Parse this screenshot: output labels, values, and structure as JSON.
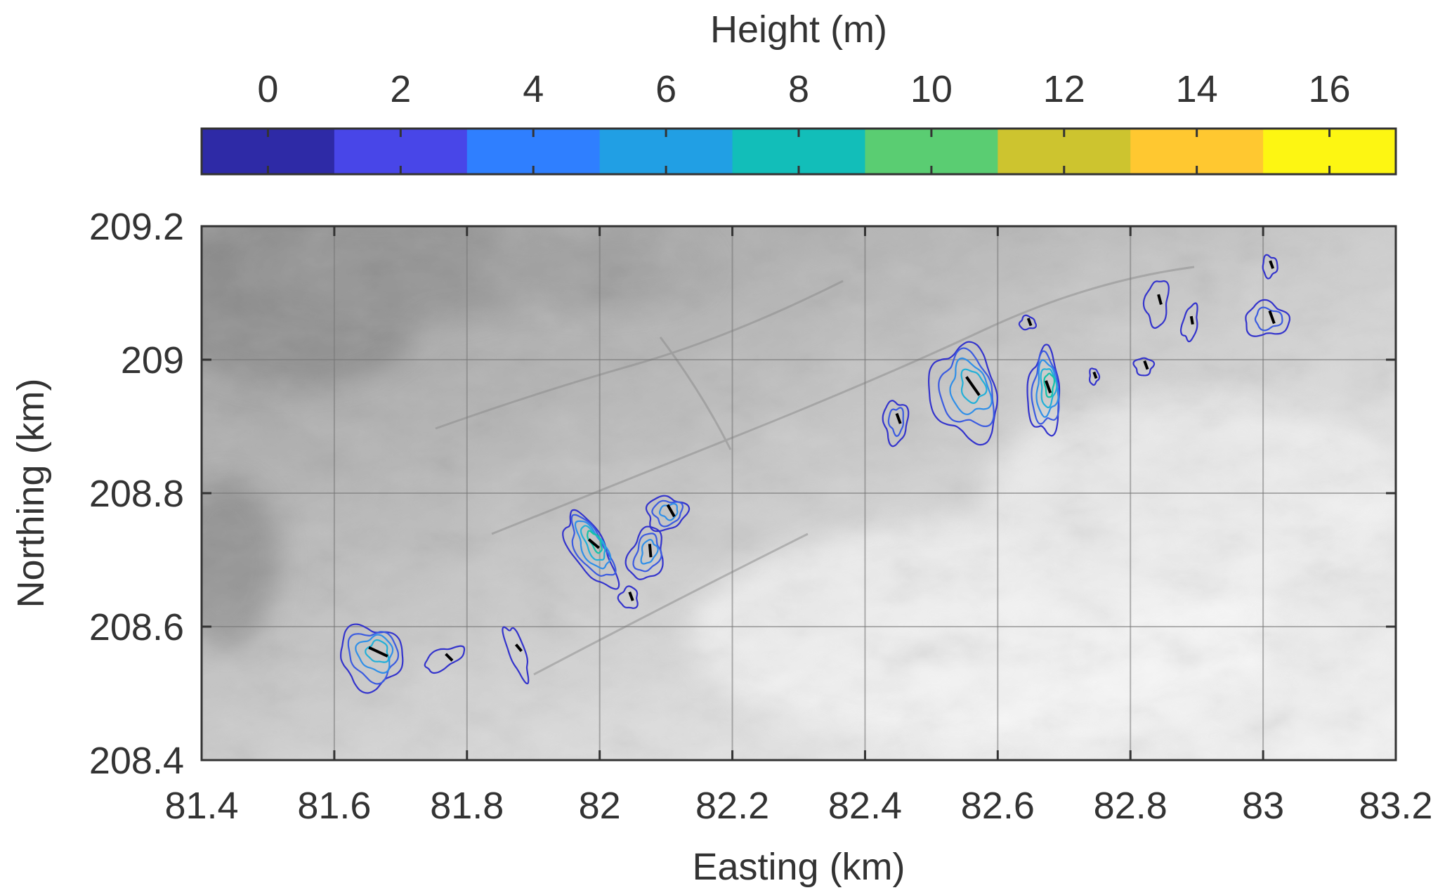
{
  "chart_data": {
    "type": "heatmap",
    "colorbar": {
      "title": "Height (m)",
      "ticks": [
        0,
        2,
        4,
        6,
        8,
        10,
        12,
        14,
        16
      ],
      "range": [
        -1,
        17
      ],
      "bands": [
        "#2e2aa6",
        "#4846e8",
        "#2f7fff",
        "#219fe4",
        "#12beb9",
        "#5acd72",
        "#cdc42f",
        "#ffc830",
        "#fdf612"
      ]
    },
    "xlabel": "Easting (km)",
    "ylabel": "Northing (km)",
    "xlim": [
      81.4,
      83.2
    ],
    "ylim": [
      208.4,
      209.2
    ],
    "xticks": [
      "81.4",
      "81.6",
      "81.8",
      "82",
      "82.2",
      "82.4",
      "82.6",
      "82.8",
      "83",
      "83.2"
    ],
    "yticks": [
      "208.4",
      "208.6",
      "208.8",
      "209",
      "209.2"
    ],
    "grid": true,
    "background": "hillshade terrain (grayscale)",
    "features": [
      {
        "center": [
          81.655,
          208.555
        ],
        "rx": 0.045,
        "ry": 0.048,
        "rot": -45,
        "levels": 4
      },
      {
        "center": [
          81.765,
          208.552
        ],
        "rx": 0.032,
        "ry": 0.014,
        "rot": -25,
        "levels": 1
      },
      {
        "center": [
          81.875,
          208.562
        ],
        "rx": 0.012,
        "ry": 0.042,
        "rot": -20,
        "levels": 1
      },
      {
        "center": [
          81.985,
          208.715
        ],
        "rx": 0.025,
        "ry": 0.062,
        "rot": -30,
        "levels": 5
      },
      {
        "center": [
          82.044,
          208.643
        ],
        "rx": 0.014,
        "ry": 0.016,
        "rot": 0,
        "levels": 1
      },
      {
        "center": [
          82.07,
          208.708
        ],
        "rx": 0.025,
        "ry": 0.04,
        "rot": 15,
        "levels": 3
      },
      {
        "center": [
          82.1,
          208.77
        ],
        "rx": 0.03,
        "ry": 0.025,
        "rot": -10,
        "levels": 3
      },
      {
        "center": [
          82.446,
          208.907
        ],
        "rx": 0.018,
        "ry": 0.032,
        "rot": 0,
        "levels": 2
      },
      {
        "center": [
          82.55,
          208.95
        ],
        "rx": 0.05,
        "ry": 0.07,
        "rot": -15,
        "levels": 4
      },
      {
        "center": [
          82.67,
          208.95
        ],
        "rx": 0.024,
        "ry": 0.062,
        "rot": 0,
        "levels": 5
      },
      {
        "center": [
          82.645,
          209.055
        ],
        "rx": 0.012,
        "ry": 0.01,
        "rot": 0,
        "levels": 1
      },
      {
        "center": [
          82.745,
          208.975
        ],
        "rx": 0.007,
        "ry": 0.012,
        "rot": 0,
        "levels": 1
      },
      {
        "center": [
          82.82,
          208.99
        ],
        "rx": 0.014,
        "ry": 0.013,
        "rot": 0,
        "levels": 1
      },
      {
        "center": [
          82.84,
          209.085
        ],
        "rx": 0.017,
        "ry": 0.035,
        "rot": 5,
        "levels": 1
      },
      {
        "center": [
          82.89,
          209.055
        ],
        "rx": 0.011,
        "ry": 0.027,
        "rot": 10,
        "levels": 1
      },
      {
        "center": [
          83.005,
          209.06
        ],
        "rx": 0.033,
        "ry": 0.025,
        "rot": 0,
        "levels": 2
      },
      {
        "center": [
          83.01,
          209.14
        ],
        "rx": 0.011,
        "ry": 0.016,
        "rot": 0,
        "levels": 1
      }
    ]
  }
}
